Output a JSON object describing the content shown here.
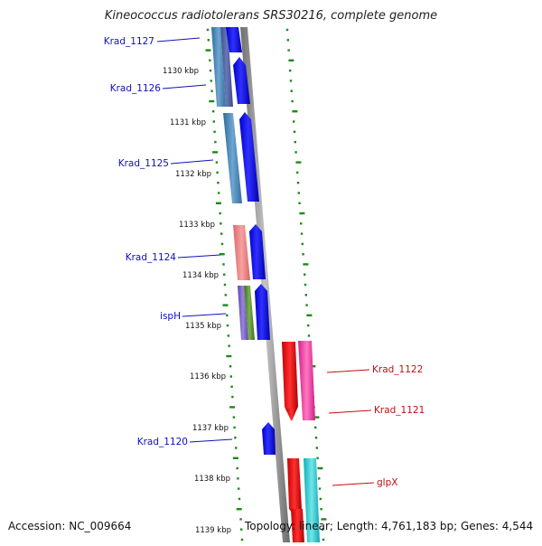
{
  "header": {
    "title": "Kineococcus radiotolerans SRS30216, complete genome"
  },
  "footer": {
    "accession": "Accession: NC_009664",
    "summary": "Topology: linear; Length: 4,761,183 bp; Genes: 4,544"
  },
  "colors": {
    "backbone": "#8a8a8a",
    "ruler_ticks": "#1a8a1a",
    "left_label": "#1010c0",
    "right_label": "#c01010"
  },
  "ruler_labels": [
    "1130 kbp",
    "1131 kbp",
    "1132 kbp",
    "1133 kbp",
    "1134 kbp",
    "1135 kbp",
    "1136 kbp",
    "1137 kbp",
    "1138 kbp",
    "1139 kbp"
  ],
  "left_genes": [
    {
      "name": "Krad_1127",
      "features": [
        "blue CDS",
        "steel-blue feature"
      ]
    },
    {
      "name": "Krad_1126",
      "features": [
        "blue CDS",
        "steel-blue feature"
      ]
    },
    {
      "name": "Krad_1125",
      "features": [
        "blue CDS",
        "steel-blue feature"
      ]
    },
    {
      "name": "Krad_1124",
      "features": [
        "blue CDS",
        "salmon feature"
      ]
    },
    {
      "name": "ispH",
      "features": [
        "blue CDS",
        "purple feature",
        "green feature"
      ]
    },
    {
      "name": "Krad_1120",
      "features": [
        "blue CDS"
      ]
    }
  ],
  "right_genes": [
    {
      "name": "Krad_1122",
      "features": [
        "red CDS",
        "pink feature"
      ]
    },
    {
      "name": "Krad_1121",
      "features": [
        "red CDS",
        "pink feature"
      ]
    },
    {
      "name": "glpX",
      "features": [
        "red CDS",
        "cyan feature"
      ]
    }
  ]
}
